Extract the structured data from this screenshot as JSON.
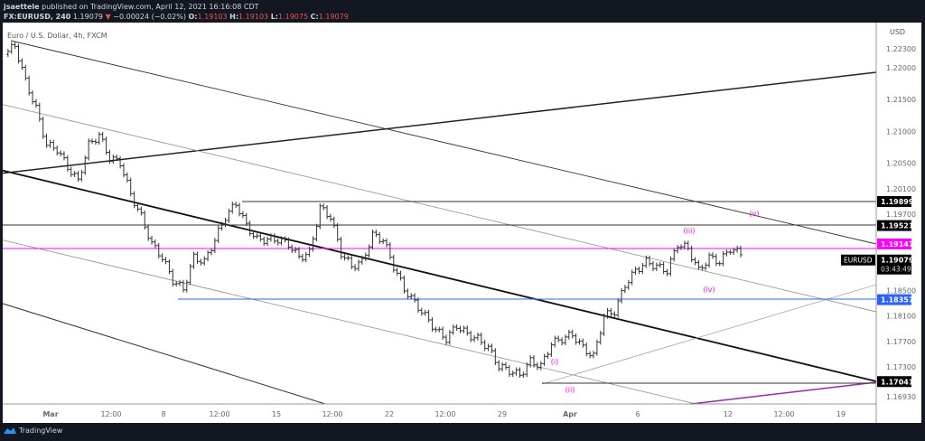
{
  "header": {
    "publisher": "jsaettele",
    "published_text": "published on TradingView.com, April 12, 2021 16:16:08 CDT",
    "symbol": "FX:EURUSD, 240",
    "last": "1.19079",
    "change": "−0.00024 (−0.02%)",
    "o_label": "O:",
    "o": "1.19103",
    "h_label": "H:",
    "h": "1.19103",
    "l_label": "L:",
    "l": "1.19075",
    "c_label": "C:",
    "c": "1.19079"
  },
  "chart_title": "Euro / U.S. Dollar, 4h, FXCM",
  "currency": "USD",
  "footer": {
    "brand": "TradingView"
  },
  "colors": {
    "up": "#000000",
    "pink": "#ff00ff",
    "blue": "#2962ff",
    "purple": "#9c27b0",
    "label_bg": "#000000"
  },
  "chart_data": {
    "type": "ohlc-bar",
    "y_ticks": [
      "1.22300",
      "1.22000",
      "1.21500",
      "1.21000",
      "1.20500",
      "1.20100",
      "1.19700",
      "1.18500",
      "1.18100",
      "1.17700",
      "1.17300",
      "1.16930"
    ],
    "x_ticks": [
      "Mar",
      "12:00",
      "8",
      "12:00",
      "15",
      "12:00",
      "22",
      "12:00",
      "29",
      "Apr",
      "6",
      "12",
      "12:00",
      "19"
    ],
    "price_labels": [
      {
        "value": "1.19899",
        "color": "#000000"
      },
      {
        "value": "1.19521",
        "color": "#000000"
      },
      {
        "value": "1.19147",
        "color": "#ff00ff"
      },
      {
        "value": "1.18357",
        "color": "#2962ff"
      },
      {
        "value": "1.17041",
        "color": "#000000"
      }
    ],
    "last_price": {
      "symbol": "EURUSD",
      "value": "1.19079",
      "countdown": "03:43:49"
    },
    "wave_labels": [
      "(i)",
      "(ii)",
      "(iii)",
      "(iv)",
      "(v)"
    ],
    "closes": [
      1.2221,
      1.2235,
      1.2179,
      1.2136,
      1.2079,
      1.2072,
      1.2044,
      1.2022,
      1.2079,
      1.2094,
      1.2058,
      1.2051,
      1.2001,
      1.1966,
      1.1923,
      1.1902,
      1.1866,
      1.1852,
      1.1902,
      1.1895,
      1.193,
      1.1966,
      1.1987,
      1.1952,
      1.193,
      1.193,
      1.193,
      1.1923,
      1.1902,
      1.1909,
      1.198,
      1.1966,
      1.1909,
      1.1888,
      1.1895,
      1.1937,
      1.193,
      1.1888,
      1.1852,
      1.1831,
      1.181,
      1.1788,
      1.1774,
      1.1795,
      1.1781,
      1.1774,
      1.176,
      1.1731,
      1.1724,
      1.1717,
      1.1739,
      1.1731,
      1.1767,
      1.1774,
      1.1781,
      1.176,
      1.1746,
      1.181,
      1.1817,
      1.1859,
      1.1881,
      1.1895,
      1.1888,
      1.1881,
      1.1923,
      1.1916,
      1.1881,
      1.1902,
      1.1895,
      1.1916,
      1.1908
    ]
  }
}
